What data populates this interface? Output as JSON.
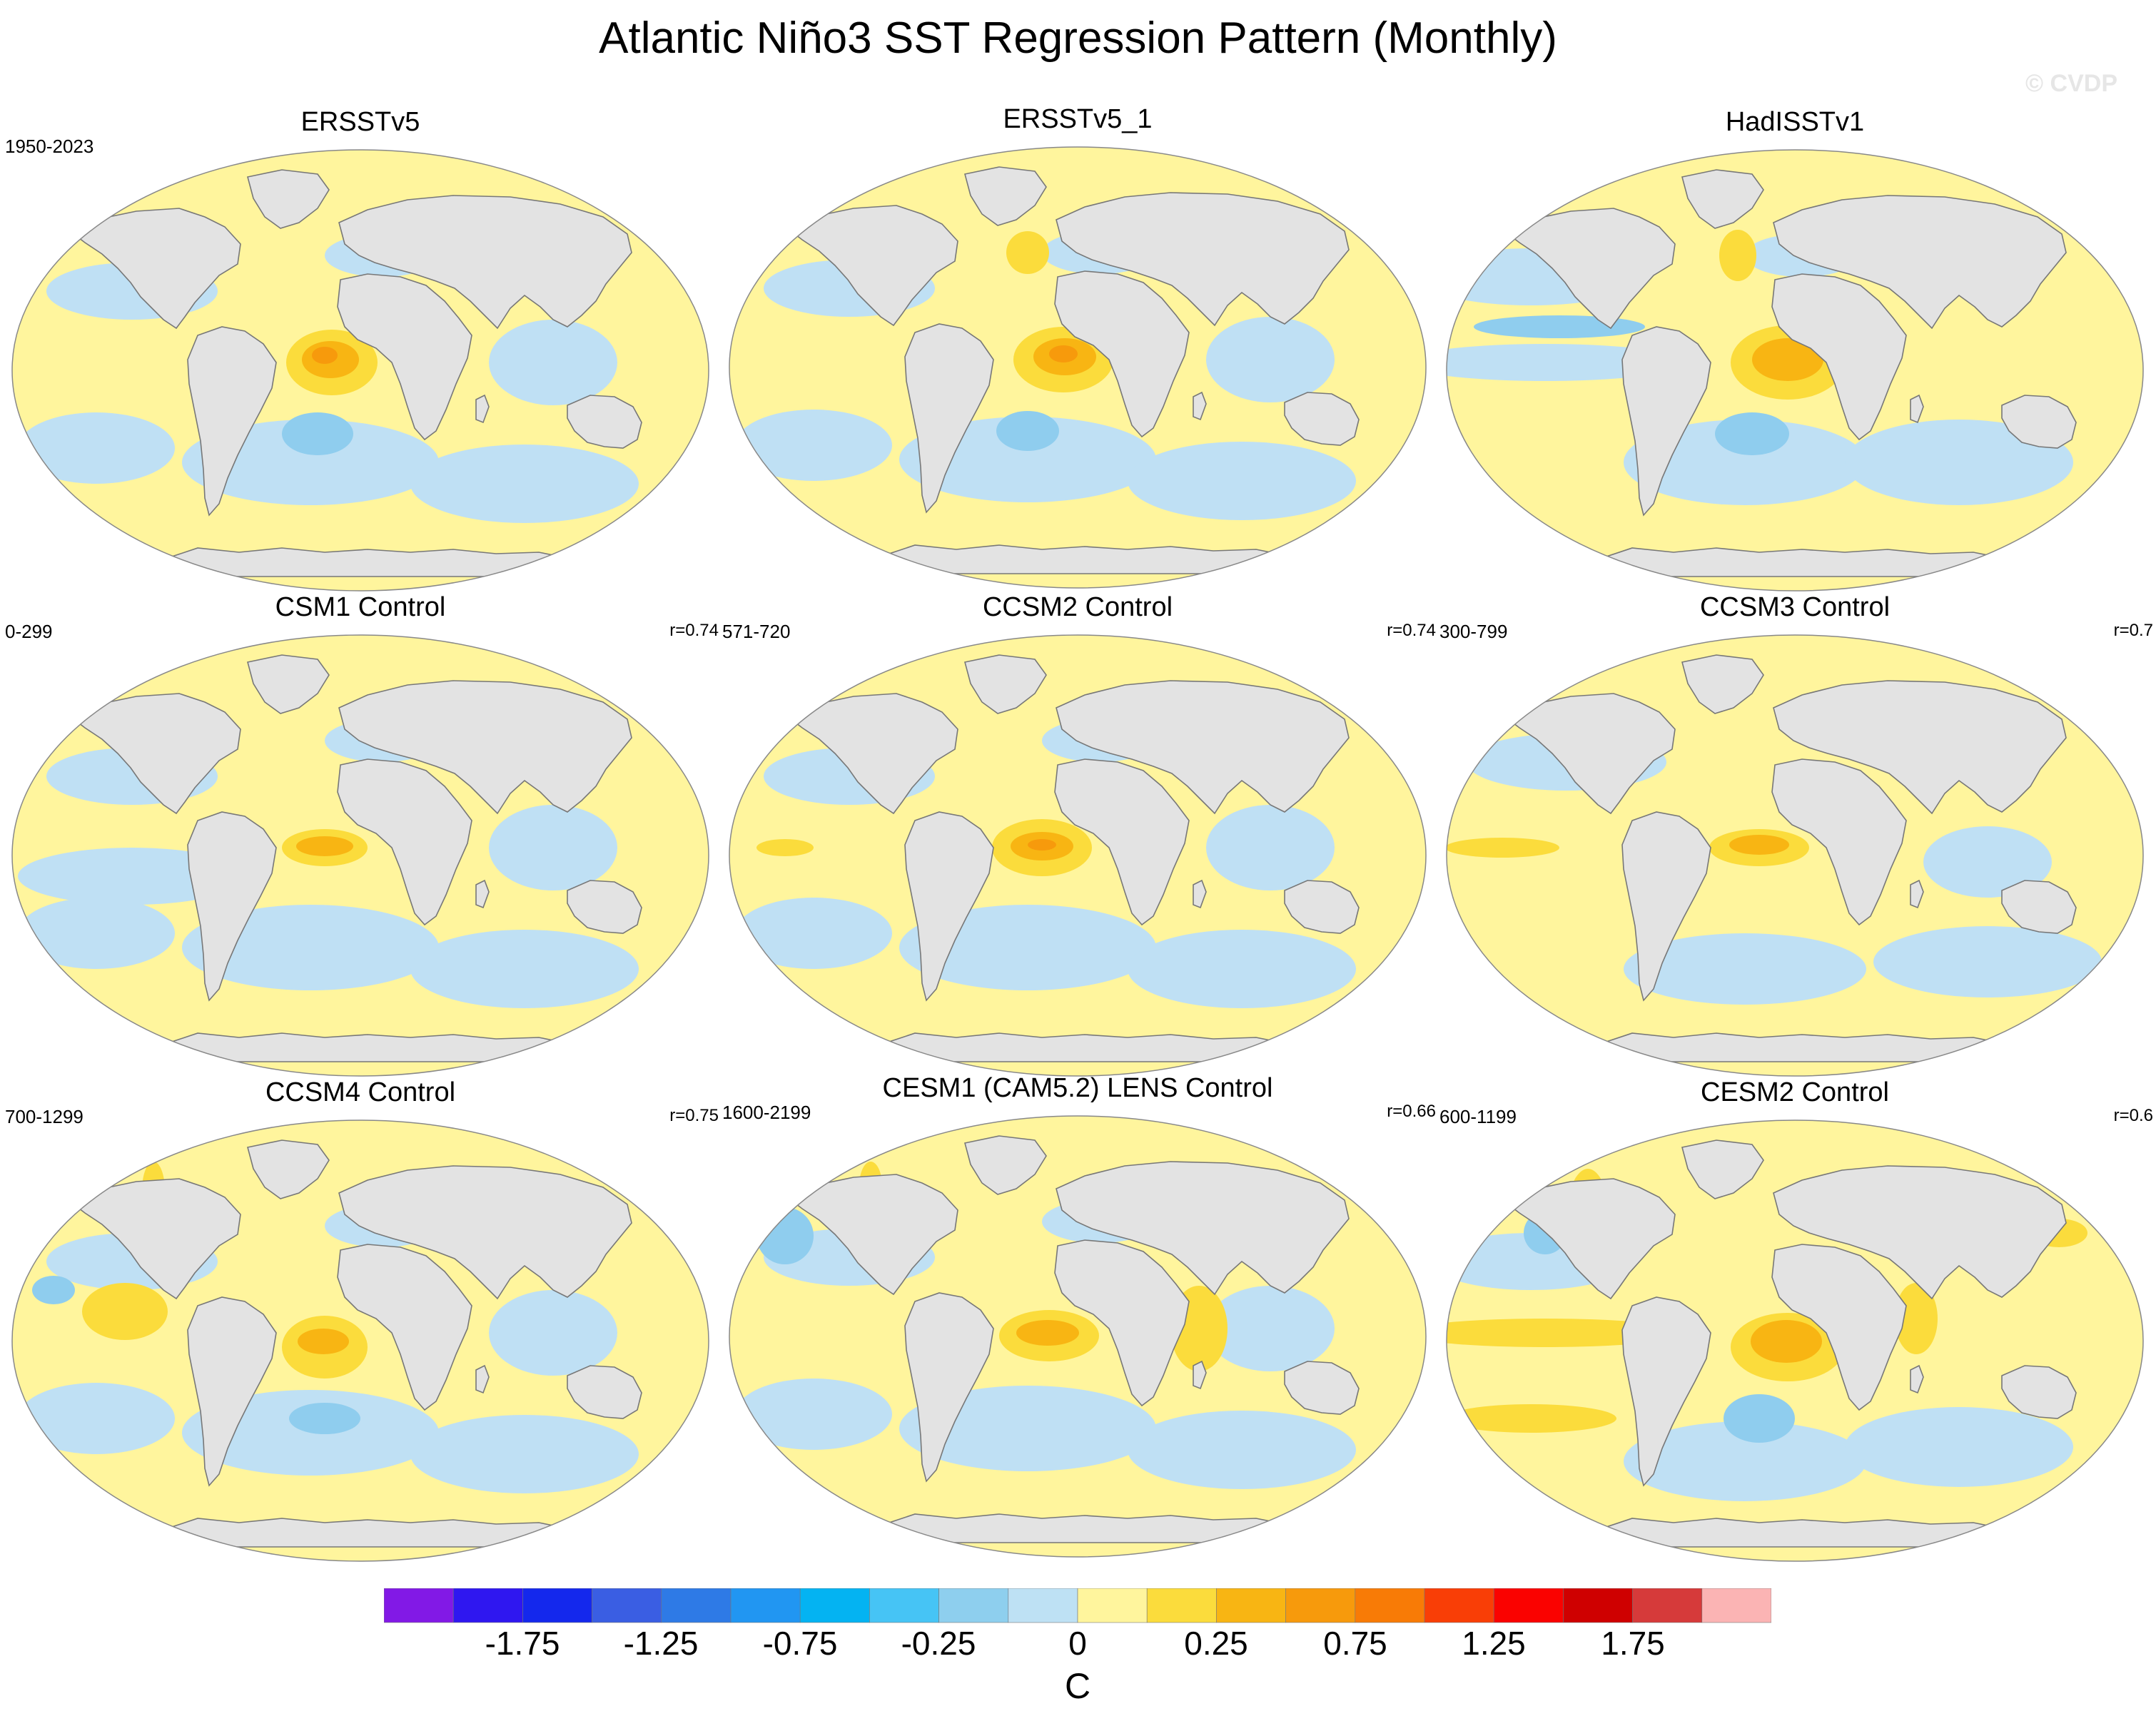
{
  "title": "Atlantic Niño3 SST Regression Pattern (Monthly)",
  "watermark": "© CVDP",
  "units": "C",
  "colors": {
    "land": "#e3e3e3",
    "coast": "#777777",
    "ocean_weak_pos": "#fff59d",
    "ocean_weak_neg": "#bfe0f4",
    "pos_medium": "#fbdc3c",
    "pos_strong": "#f8b513",
    "pos_stronger": "#f79a0c",
    "neg_medium": "#8fcdee"
  },
  "colorbar": {
    "colors": [
      "#8219e6",
      "#2f17f0",
      "#1428ed",
      "#3a5ee3",
      "#2e7ae6",
      "#2196f2",
      "#04b3f2",
      "#46c4f5",
      "#8ecfee",
      "#bee1f4",
      "#fff59d",
      "#fbdc3c",
      "#f8b513",
      "#f79a0c",
      "#f87b06",
      "#f93e06",
      "#fa0200",
      "#cf0000",
      "#d63a3a",
      "#fbb4b4"
    ],
    "labels": [
      "-1.75",
      "-1.25",
      "-0.75",
      "-0.25",
      "0",
      "0.25",
      "0.75",
      "1.25",
      "1.75"
    ]
  },
  "panels": [
    {
      "title": "ERSSTv5",
      "years": "1950-2023",
      "corr": ""
    },
    {
      "title": "ERSSTv5_1",
      "years": "",
      "corr": ""
    },
    {
      "title": "HadISSTv1",
      "years": "",
      "corr": ""
    },
    {
      "title": "CSM1 Control",
      "years": "0-299",
      "corr": "r=0.74"
    },
    {
      "title": "CCSM2 Control",
      "years": "571-720",
      "corr": "r=0.74"
    },
    {
      "title": "CCSM3 Control",
      "years": "300-799",
      "corr": "r=0.7"
    },
    {
      "title": "CCSM4 Control",
      "years": "700-1299",
      "corr": "r=0.75"
    },
    {
      "title": "CESM1 (CAM5.2) LENS Control",
      "years": "1600-2199",
      "corr": "r=0.66"
    },
    {
      "title": "CESM2 Control",
      "years": "600-1199",
      "corr": "r=0.6"
    }
  ]
}
